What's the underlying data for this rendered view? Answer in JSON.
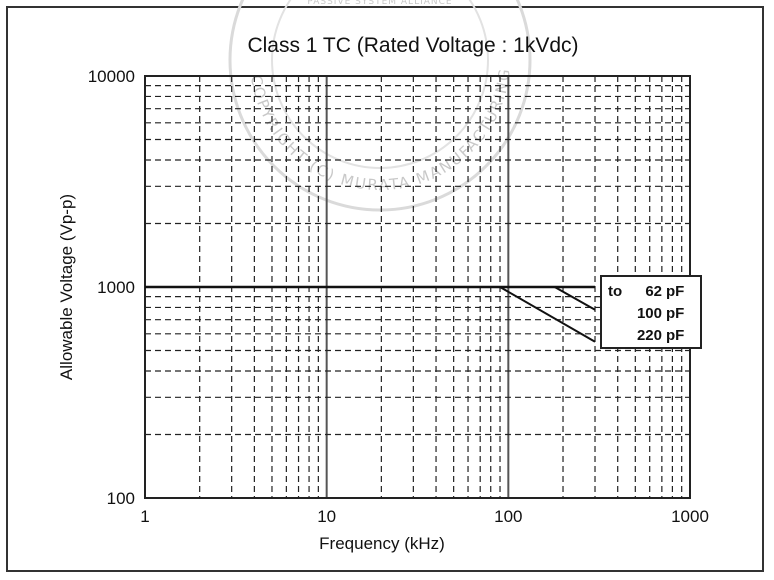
{
  "watermark": {
    "top_text": "PASSIVE SYSTEM ALLIANCE",
    "ring_text": "COPYRIGHT (C) MURATA MANUFACTURING CO., LTD. ALL RIGHTS RESERVED"
  },
  "chart_data": {
    "type": "line",
    "title": "Class 1 TC (Rated Voltage : 1kVdc)",
    "xlabel": "Frequency (kHz)",
    "ylabel": "Allowable Voltage (Vp-p)",
    "xscale": "log",
    "yscale": "log",
    "xlim": [
      1,
      1000
    ],
    "ylim": [
      100,
      10000
    ],
    "grid": true,
    "x_ticks": [
      "1",
      "10",
      "100",
      "1000"
    ],
    "y_ticks": [
      "100",
      "1000",
      "10000"
    ],
    "legend_position": "right",
    "series": [
      {
        "name": "to 62 pF",
        "x": [
          1,
          300
        ],
        "y": [
          1000,
          1000
        ]
      },
      {
        "name": "100 pF",
        "x": [
          1,
          180,
          300
        ],
        "y": [
          1000,
          1000,
          780
        ]
      },
      {
        "name": "220 pF",
        "x": [
          1,
          90,
          300
        ],
        "y": [
          1000,
          1000,
          550
        ]
      }
    ],
    "annotations": [
      {
        "prefix": "to",
        "value": "62",
        "unit": "pF"
      },
      {
        "prefix": "",
        "value": "100",
        "unit": "pF"
      },
      {
        "prefix": "",
        "value": "220",
        "unit": "pF"
      }
    ]
  }
}
